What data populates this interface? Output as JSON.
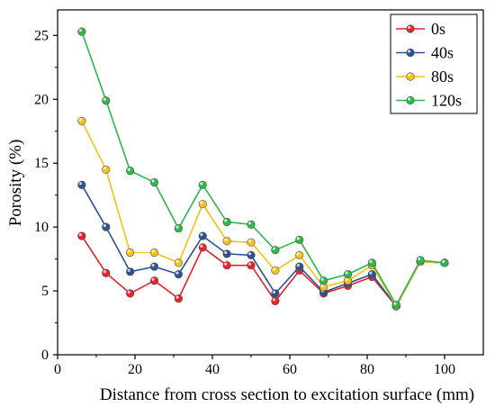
{
  "chart_data": {
    "type": "line",
    "title": "",
    "xlabel": "Distance from  cross section to excitation surface (mm)",
    "ylabel": "Porosity (%)",
    "xlim": [
      0,
      110
    ],
    "ylim": [
      0,
      27
    ],
    "xticks": [
      0,
      20,
      40,
      60,
      80,
      100
    ],
    "yticks": [
      0,
      5,
      10,
      15,
      20,
      25
    ],
    "grid": false,
    "legend_position": "top-right",
    "x": [
      6.25,
      12.5,
      18.75,
      25,
      31.25,
      37.5,
      43.75,
      50,
      56.25,
      62.5,
      68.75,
      75,
      81.25,
      87.5,
      93.75,
      100
    ],
    "series": [
      {
        "name": "0s",
        "color": "#e8212a",
        "marker_color": "#e8212a",
        "values": [
          9.3,
          6.4,
          4.8,
          5.8,
          4.4,
          8.4,
          7.0,
          7.0,
          4.2,
          6.6,
          4.8,
          5.4,
          6.1,
          3.8,
          7.3,
          7.2
        ]
      },
      {
        "name": "40s",
        "color": "#2d5190",
        "marker_color": "#2d5190",
        "values": [
          13.3,
          10.0,
          6.5,
          6.9,
          6.3,
          9.3,
          7.9,
          7.8,
          4.8,
          6.9,
          4.9,
          5.6,
          6.3,
          3.8,
          7.3,
          7.2
        ]
      },
      {
        "name": "80s",
        "color": "#f5c21c",
        "marker_color": "#f5c21c",
        "values": [
          18.3,
          14.5,
          8.0,
          8.0,
          7.2,
          11.8,
          8.9,
          8.8,
          6.6,
          7.8,
          5.3,
          5.8,
          7.0,
          3.8,
          7.3,
          7.2
        ]
      },
      {
        "name": "120s",
        "color": "#2db84c",
        "marker_color": "#2db84c",
        "values": [
          25.3,
          19.9,
          14.4,
          13.5,
          9.9,
          13.3,
          10.4,
          10.2,
          8.2,
          9.0,
          5.8,
          6.3,
          7.2,
          3.9,
          7.4,
          7.2
        ]
      }
    ]
  }
}
